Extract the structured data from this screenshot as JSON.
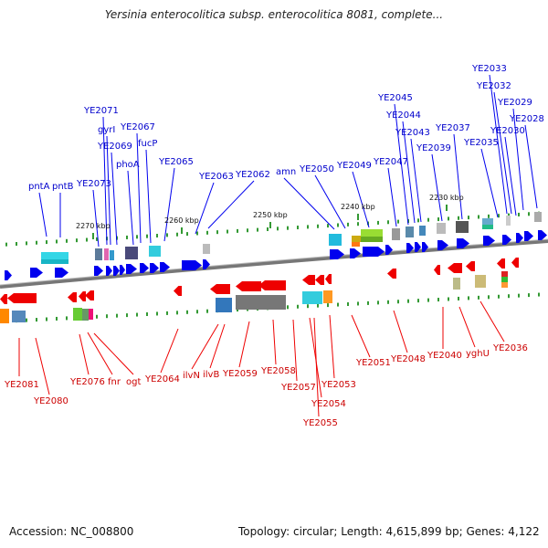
{
  "title": "Yersinia enterocolitica subsp. enterocolitica 8081, complete...",
  "accession": "Accession: NC_008800",
  "summary": "Topology: circular; Length: 4,615,899 bp; Genes: 4,122",
  "colors": {
    "forward": "#0000ee",
    "reverse": "#ee0000",
    "backbone": "#777777",
    "tick": "#339933"
  },
  "scale_ticks": [
    {
      "label": "2270 kbp"
    },
    {
      "label": "2260 kbp"
    },
    {
      "label": "2250 kbp"
    },
    {
      "label": "2240 kbp"
    },
    {
      "label": "2230 kbp"
    }
  ],
  "top_labels": [
    {
      "text": "YE2033"
    },
    {
      "text": "YE2032"
    },
    {
      "text": "YE2029"
    },
    {
      "text": "YE2028"
    },
    {
      "text": "YE2030"
    },
    {
      "text": "YE2035"
    },
    {
      "text": "YE2037"
    },
    {
      "text": "YE2045"
    },
    {
      "text": "YE2044"
    },
    {
      "text": "YE2043"
    },
    {
      "text": "YE2039"
    },
    {
      "text": "YE2047"
    },
    {
      "text": "YE2049"
    },
    {
      "text": "YE2050"
    },
    {
      "text": "amn"
    },
    {
      "text": "YE2062"
    },
    {
      "text": "YE2063"
    },
    {
      "text": "YE2065"
    },
    {
      "text": "fucP"
    },
    {
      "text": "YE2067"
    },
    {
      "text": "YE2069"
    },
    {
      "text": "gyrI"
    },
    {
      "text": "YE2071"
    },
    {
      "text": "phoA"
    },
    {
      "text": "YE2073"
    },
    {
      "text": "pntB"
    },
    {
      "text": "pntA"
    }
  ],
  "bottom_labels": [
    {
      "text": "YE2081"
    },
    {
      "text": "YE2080"
    },
    {
      "text": "YE2076"
    },
    {
      "text": "fnr"
    },
    {
      "text": "ogt"
    },
    {
      "text": "YE2064"
    },
    {
      "text": "ilvN"
    },
    {
      "text": "ilvB"
    },
    {
      "text": "YE2059"
    },
    {
      "text": "YE2058"
    },
    {
      "text": "YE2057"
    },
    {
      "text": "YE2054"
    },
    {
      "text": "YE2055"
    },
    {
      "text": "YE2053"
    },
    {
      "text": "YE2051"
    },
    {
      "text": "YE2048"
    },
    {
      "text": "YE2040"
    },
    {
      "text": "yghU"
    },
    {
      "text": "YE2036"
    }
  ]
}
